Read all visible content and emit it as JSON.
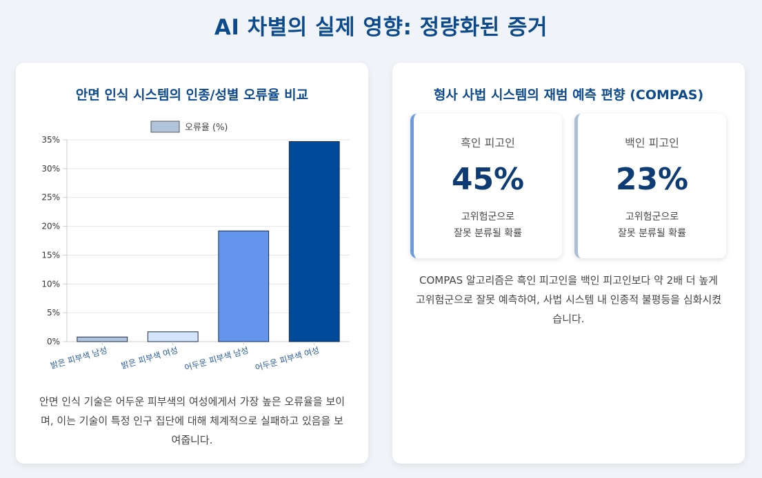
{
  "page_title": "AI 차별의 실제 영향: 정량화된 증거",
  "left_card": {
    "title": "안면 인식 시스템의 인종/성별 오류율 비교",
    "caption": "안면 인식 기술은 어두운 피부색의 여성에게서 가장 높은 오류율을 보이며, 이는 기술이 특정 인구 집단에 대해 체계적으로 실패하고 있음을 보여줍니다."
  },
  "chart_data": {
    "type": "bar",
    "categories": [
      "밝은 피부색 남성",
      "밝은 피부색 여성",
      "어두운 피부색 남성",
      "어두운 피부색 여성"
    ],
    "series": [
      {
        "name": "오류율 (%)",
        "values": [
          0.8,
          1.7,
          19.2,
          34.7
        ]
      }
    ],
    "bar_colors": [
      "#b0c4de",
      "#d4e4fa",
      "#6495ed",
      "#004a99"
    ],
    "legend_color": "#b0c4de",
    "ylim": [
      0,
      35
    ],
    "yticks": [
      0,
      5,
      10,
      15,
      20,
      25,
      30,
      35
    ],
    "ytick_labels": [
      "0%",
      "5%",
      "10%",
      "15%",
      "20%",
      "25%",
      "30%",
      "35%"
    ],
    "legend_position": "top",
    "grid": true
  },
  "right_card": {
    "title": "형사 사법 시스템의 재범 예측 편향 (COMPAS)",
    "stats": [
      {
        "label": "흑인 피고인",
        "value": "45%",
        "desc_line1": "고위험군으로",
        "desc_line2": "잘못 분류될 확률",
        "accent": "#6b9be0"
      },
      {
        "label": "백인 피고인",
        "value": "23%",
        "desc_line1": "고위험군으로",
        "desc_line2": "잘못 분류될 확률",
        "accent": "#a9bfd6"
      }
    ],
    "caption": "COMPAS 알고리즘은 흑인 피고인을 백인 피고인보다 약 2배 더 높게 고위험군으로 잘못 예측하여, 사법 시스템 내 인종적 불평등을 심화시켰습니다."
  }
}
